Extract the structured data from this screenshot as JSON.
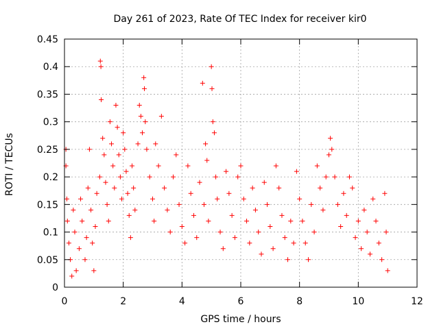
{
  "chart_data": {
    "type": "scatter",
    "title": "Day 261 of 2023, Rate Of TEC Index for receiver kir0",
    "xlabel": "GPS time / hours",
    "ylabel": "ROTI / TECUs",
    "xlim": [
      0,
      12
    ],
    "ylim": [
      0,
      0.45
    ],
    "x_ticks": [
      0,
      2,
      4,
      6,
      8,
      10,
      12
    ],
    "y_ticks": [
      0,
      0.05,
      0.1,
      0.15,
      0.2,
      0.25,
      0.3,
      0.35,
      0.4,
      0.45
    ],
    "x_tick_labels": [
      "0",
      "2",
      "4",
      "6",
      "8",
      "10",
      "12"
    ],
    "y_tick_labels": [
      "0",
      "0.05",
      "0.1",
      "0.15",
      "0.2",
      "0.25",
      "0.3",
      "0.35",
      "0.4",
      "0.45"
    ],
    "grid": true,
    "marker": "+",
    "color": "#ff0000",
    "series": [
      {
        "points": [
          [
            0.05,
            0.25
          ],
          [
            0.05,
            0.22
          ],
          [
            0.08,
            0.16
          ],
          [
            0.1,
            0.12
          ],
          [
            0.15,
            0.08
          ],
          [
            0.2,
            0.05
          ],
          [
            0.25,
            0.02
          ],
          [
            0.3,
            0.14
          ],
          [
            0.35,
            0.1
          ],
          [
            0.4,
            0.03
          ],
          [
            0.5,
            0.07
          ],
          [
            0.55,
            0.16
          ],
          [
            0.6,
            0.12
          ],
          [
            0.7,
            0.05
          ],
          [
            0.75,
            0.09
          ],
          [
            0.8,
            0.18
          ],
          [
            0.85,
            0.25
          ],
          [
            0.9,
            0.14
          ],
          [
            0.95,
            0.08
          ],
          [
            1.0,
            0.03
          ],
          [
            1.05,
            0.11
          ],
          [
            1.1,
            0.17
          ],
          [
            1.2,
            0.2
          ],
          [
            1.22,
            0.41
          ],
          [
            1.24,
            0.4
          ],
          [
            1.25,
            0.34
          ],
          [
            1.3,
            0.27
          ],
          [
            1.35,
            0.24
          ],
          [
            1.4,
            0.19
          ],
          [
            1.45,
            0.15
          ],
          [
            1.5,
            0.12
          ],
          [
            1.55,
            0.3
          ],
          [
            1.6,
            0.26
          ],
          [
            1.65,
            0.22
          ],
          [
            1.7,
            0.18
          ],
          [
            1.75,
            0.33
          ],
          [
            1.8,
            0.29
          ],
          [
            1.85,
            0.24
          ],
          [
            1.9,
            0.2
          ],
          [
            1.95,
            0.16
          ],
          [
            2.0,
            0.28
          ],
          [
            2.05,
            0.25
          ],
          [
            2.1,
            0.21
          ],
          [
            2.15,
            0.17
          ],
          [
            2.2,
            0.13
          ],
          [
            2.25,
            0.09
          ],
          [
            2.3,
            0.22
          ],
          [
            2.35,
            0.18
          ],
          [
            2.4,
            0.14
          ],
          [
            2.5,
            0.26
          ],
          [
            2.55,
            0.33
          ],
          [
            2.6,
            0.31
          ],
          [
            2.65,
            0.28
          ],
          [
            2.7,
            0.38
          ],
          [
            2.72,
            0.36
          ],
          [
            2.75,
            0.3
          ],
          [
            2.8,
            0.25
          ],
          [
            2.9,
            0.2
          ],
          [
            3.0,
            0.16
          ],
          [
            3.05,
            0.12
          ],
          [
            3.1,
            0.26
          ],
          [
            3.2,
            0.22
          ],
          [
            3.3,
            0.31
          ],
          [
            3.4,
            0.18
          ],
          [
            3.5,
            0.14
          ],
          [
            3.6,
            0.1
          ],
          [
            3.7,
            0.2
          ],
          [
            3.8,
            0.24
          ],
          [
            3.9,
            0.15
          ],
          [
            4.0,
            0.11
          ],
          [
            4.1,
            0.08
          ],
          [
            4.2,
            0.22
          ],
          [
            4.3,
            0.17
          ],
          [
            4.4,
            0.13
          ],
          [
            4.5,
            0.09
          ],
          [
            4.6,
            0.19
          ],
          [
            4.7,
            0.37
          ],
          [
            4.75,
            0.15
          ],
          [
            4.8,
            0.26
          ],
          [
            4.85,
            0.23
          ],
          [
            4.9,
            0.12
          ],
          [
            5.0,
            0.4
          ],
          [
            5.02,
            0.36
          ],
          [
            5.05,
            0.3
          ],
          [
            5.1,
            0.28
          ],
          [
            5.15,
            0.2
          ],
          [
            5.2,
            0.16
          ],
          [
            5.3,
            0.1
          ],
          [
            5.4,
            0.07
          ],
          [
            5.5,
            0.21
          ],
          [
            5.6,
            0.17
          ],
          [
            5.7,
            0.13
          ],
          [
            5.8,
            0.09
          ],
          [
            5.9,
            0.2
          ],
          [
            6.0,
            0.22
          ],
          [
            6.1,
            0.16
          ],
          [
            6.2,
            0.12
          ],
          [
            6.3,
            0.08
          ],
          [
            6.4,
            0.18
          ],
          [
            6.5,
            0.14
          ],
          [
            6.6,
            0.1
          ],
          [
            6.7,
            0.06
          ],
          [
            6.8,
            0.19
          ],
          [
            6.9,
            0.15
          ],
          [
            7.0,
            0.11
          ],
          [
            7.1,
            0.07
          ],
          [
            7.2,
            0.22
          ],
          [
            7.3,
            0.18
          ],
          [
            7.4,
            0.13
          ],
          [
            7.5,
            0.09
          ],
          [
            7.6,
            0.05
          ],
          [
            7.7,
            0.12
          ],
          [
            7.8,
            0.08
          ],
          [
            7.9,
            0.21
          ],
          [
            8.0,
            0.16
          ],
          [
            8.1,
            0.12
          ],
          [
            8.2,
            0.08
          ],
          [
            8.3,
            0.05
          ],
          [
            8.4,
            0.15
          ],
          [
            8.5,
            0.1
          ],
          [
            8.6,
            0.22
          ],
          [
            8.7,
            0.18
          ],
          [
            8.8,
            0.14
          ],
          [
            8.9,
            0.2
          ],
          [
            9.0,
            0.24
          ],
          [
            9.05,
            0.27
          ],
          [
            9.1,
            0.25
          ],
          [
            9.2,
            0.2
          ],
          [
            9.3,
            0.15
          ],
          [
            9.4,
            0.11
          ],
          [
            9.5,
            0.17
          ],
          [
            9.6,
            0.13
          ],
          [
            9.7,
            0.2
          ],
          [
            9.8,
            0.18
          ],
          [
            9.9,
            0.09
          ],
          [
            10.0,
            0.12
          ],
          [
            10.1,
            0.07
          ],
          [
            10.2,
            0.14
          ],
          [
            10.3,
            0.1
          ],
          [
            10.4,
            0.06
          ],
          [
            10.5,
            0.16
          ],
          [
            10.6,
            0.12
          ],
          [
            10.7,
            0.08
          ],
          [
            10.8,
            0.05
          ],
          [
            10.9,
            0.17
          ],
          [
            10.95,
            0.1
          ],
          [
            11.0,
            0.03
          ]
        ]
      }
    ]
  }
}
